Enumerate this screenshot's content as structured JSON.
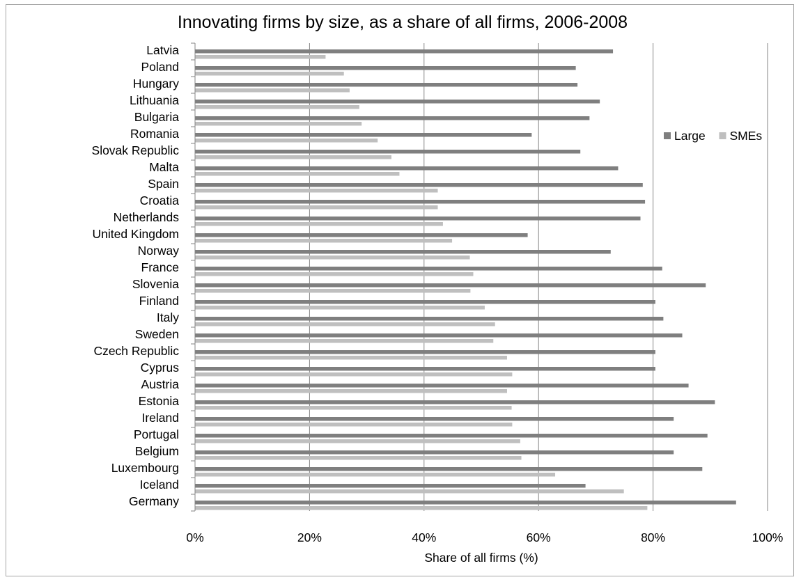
{
  "chart_data": {
    "type": "bar",
    "orientation": "horizontal",
    "title": "Innovating firms by size, as a share of all firms, 2006-2008",
    "xlabel": "Share of all firms (%)",
    "ylabel": "",
    "xlim": [
      0,
      100
    ],
    "x_ticks": [
      "0%",
      "20%",
      "40%",
      "60%",
      "80%",
      "100%"
    ],
    "grid": "vertical",
    "legend_position": "right",
    "categories": [
      "Latvia",
      "Poland",
      "Hungary",
      "Lithuania",
      "Bulgaria",
      "Romania",
      "Slovak Republic",
      "Malta",
      "Spain",
      "Croatia",
      "Netherlands",
      "United Kingdom",
      "Norway",
      "France",
      "Slovenia",
      "Finland",
      "Italy",
      "Sweden",
      "Czech Republic",
      "Cyprus",
      "Austria",
      "Estonia",
      "Ireland",
      "Portugal",
      "Belgium",
      "Luxembourg",
      "Iceland",
      "Germany"
    ],
    "series": [
      {
        "name": "Large",
        "color": "#7f7f7f",
        "values": [
          73.0,
          66.5,
          66.8,
          70.7,
          68.9,
          58.8,
          67.3,
          73.9,
          78.2,
          78.6,
          77.8,
          58.1,
          72.6,
          81.6,
          89.2,
          80.4,
          81.8,
          85.1,
          80.4,
          80.4,
          86.2,
          90.8,
          83.6,
          89.5,
          83.6,
          88.6,
          68.2,
          94.5
        ]
      },
      {
        "name": "SMEs",
        "color": "#bfbfbf",
        "values": [
          22.8,
          26.0,
          27.0,
          28.7,
          29.1,
          31.9,
          34.3,
          35.7,
          42.4,
          42.4,
          43.3,
          44.9,
          48.0,
          48.6,
          48.1,
          50.6,
          52.4,
          52.1,
          54.5,
          55.4,
          54.5,
          55.3,
          55.4,
          56.8,
          57.0,
          62.9,
          74.9,
          79.0
        ]
      }
    ]
  }
}
